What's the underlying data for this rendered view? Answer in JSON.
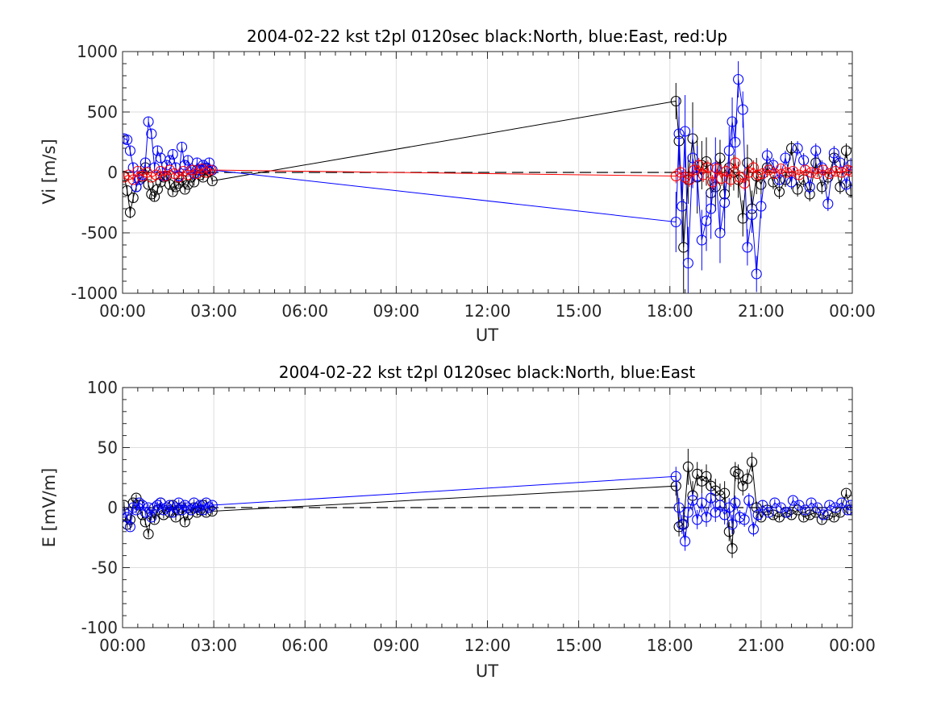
{
  "chart_data": [
    {
      "type": "scatter",
      "title": "2004-02-22 kst t2pl 0120sec black:North, blue:East, red:Up",
      "xlabel": "UT",
      "ylabel": "Vi [m/s]",
      "xlim": [
        0,
        24
      ],
      "ylim": [
        -1000,
        1000
      ],
      "x_ticks": [
        "00:00",
        "03:00",
        "06:00",
        "09:00",
        "12:00",
        "15:00",
        "18:00",
        "21:00",
        "00:00"
      ],
      "y_ticks": [
        "1000",
        "500",
        "0",
        "-500",
        "-1000"
      ],
      "grid": true,
      "reference_line": {
        "y": 0,
        "style": "dashed",
        "color": "#000000"
      },
      "series": [
        {
          "name": "North",
          "color": "#000000",
          "x": [
            0.05,
            0.15,
            0.25,
            0.35,
            0.45,
            0.55,
            0.65,
            0.75,
            0.85,
            0.95,
            1.05,
            1.15,
            1.25,
            1.35,
            1.45,
            1.55,
            1.65,
            1.75,
            1.85,
            1.95,
            2.05,
            2.15,
            2.25,
            2.35,
            2.45,
            2.55,
            2.65,
            2.75,
            2.85,
            2.95,
            18.2,
            18.3,
            18.45,
            18.6,
            18.75,
            18.9,
            19.05,
            19.2,
            19.35,
            19.5,
            19.65,
            19.8,
            19.95,
            20.1,
            20.25,
            20.4,
            20.55,
            20.7,
            20.85,
            21.0,
            21.2,
            21.4,
            21.6,
            21.8,
            22.0,
            22.2,
            22.4,
            22.6,
            22.8,
            23.0,
            23.2,
            23.4,
            23.6,
            23.8,
            23.95
          ],
          "y": [
            -30,
            -150,
            -330,
            -210,
            -120,
            -60,
            -40,
            40,
            -100,
            -180,
            -200,
            -140,
            -80,
            -40,
            -30,
            -100,
            -160,
            -120,
            -90,
            -60,
            -140,
            -100,
            -40,
            -80,
            20,
            -20,
            -40,
            30,
            10,
            -70,
            590,
            260,
            -620,
            -60,
            280,
            -40,
            60,
            90,
            -170,
            -120,
            120,
            -180,
            40,
            0,
            -60,
            -380,
            80,
            -300,
            -30,
            -100,
            40,
            -80,
            -160,
            -60,
            200,
            -140,
            -60,
            -180,
            80,
            -120,
            -40,
            120,
            -120,
            180,
            -150
          ],
          "error_y": [
            30,
            40,
            50,
            40,
            30,
            30,
            30,
            30,
            30,
            40,
            40,
            30,
            30,
            30,
            30,
            30,
            30,
            30,
            30,
            30,
            30,
            30,
            30,
            30,
            30,
            30,
            30,
            30,
            30,
            30,
            150,
            200,
            400,
            200,
            300,
            300,
            200,
            200,
            250,
            200,
            150,
            200,
            200,
            150,
            150,
            150,
            150,
            150,
            150,
            80,
            80,
            60,
            60,
            60,
            60,
            60,
            60,
            60,
            60,
            60,
            60,
            60,
            60,
            60,
            60
          ]
        },
        {
          "name": "East",
          "color": "#0000ff",
          "x": [
            0.05,
            0.15,
            0.25,
            0.35,
            0.45,
            0.55,
            0.65,
            0.75,
            0.85,
            0.95,
            1.05,
            1.15,
            1.25,
            1.35,
            1.45,
            1.55,
            1.65,
            1.75,
            1.85,
            1.95,
            2.05,
            2.15,
            2.25,
            2.35,
            2.45,
            2.55,
            2.65,
            2.75,
            2.85,
            2.95,
            18.2,
            18.3,
            18.4,
            18.5,
            18.6,
            18.75,
            18.9,
            19.05,
            19.2,
            19.35,
            19.5,
            19.65,
            19.8,
            19.95,
            20.05,
            20.15,
            20.25,
            20.4,
            20.55,
            20.7,
            20.85,
            21.0,
            21.2,
            21.4,
            21.6,
            21.8,
            22.0,
            22.2,
            22.4,
            22.6,
            22.8,
            23.0,
            23.2,
            23.4,
            23.6,
            23.8,
            23.95
          ],
          "y": [
            280,
            270,
            180,
            40,
            -120,
            -60,
            -20,
            80,
            420,
            320,
            40,
            180,
            120,
            -30,
            60,
            100,
            150,
            40,
            -30,
            210,
            60,
            100,
            20,
            -10,
            80,
            20,
            60,
            40,
            80,
            20,
            -410,
            320,
            -280,
            340,
            -750,
            120,
            -30,
            -560,
            -400,
            -300,
            40,
            -500,
            -250,
            180,
            420,
            250,
            770,
            520,
            -620,
            -350,
            -840,
            -280,
            140,
            60,
            -60,
            120,
            -80,
            200,
            100,
            -120,
            180,
            40,
            -260,
            160,
            80,
            -100,
            60
          ],
          "error_y": [
            40,
            40,
            40,
            40,
            40,
            40,
            40,
            40,
            40,
            40,
            40,
            40,
            40,
            40,
            40,
            40,
            40,
            40,
            40,
            40,
            40,
            40,
            40,
            40,
            40,
            40,
            40,
            40,
            40,
            40,
            250,
            300,
            300,
            300,
            300,
            250,
            250,
            250,
            250,
            250,
            250,
            250,
            250,
            200,
            200,
            200,
            150,
            150,
            150,
            150,
            150,
            100,
            60,
            60,
            60,
            60,
            60,
            60,
            60,
            60,
            60,
            60,
            60,
            60,
            60,
            60,
            60
          ]
        },
        {
          "name": "Up",
          "color": "#ff0000",
          "x": [
            0.05,
            0.2,
            0.35,
            0.5,
            0.65,
            0.8,
            0.95,
            1.1,
            1.25,
            1.4,
            1.55,
            1.7,
            1.85,
            2.0,
            2.15,
            2.3,
            2.45,
            2.6,
            2.75,
            2.9,
            18.2,
            18.35,
            18.5,
            18.65,
            18.8,
            18.95,
            19.1,
            19.25,
            19.4,
            19.55,
            19.7,
            19.85,
            20.0,
            20.15,
            20.3,
            20.45,
            20.6,
            20.75,
            20.9,
            21.05,
            21.25,
            21.45,
            21.65,
            21.85,
            22.05,
            22.25,
            22.45,
            22.65,
            22.85,
            23.05,
            23.25,
            23.45,
            23.65,
            23.85,
            23.95
          ],
          "y": [
            -40,
            -20,
            -60,
            10,
            -30,
            0,
            -40,
            -20,
            10,
            -30,
            20,
            -10,
            -40,
            10,
            -20,
            20,
            -10,
            30,
            0,
            20,
            -30,
            0,
            -40,
            -60,
            20,
            60,
            -20,
            40,
            -80,
            30,
            -50,
            10,
            -60,
            80,
            -40,
            -90,
            0,
            40,
            -20,
            -10,
            20,
            -10,
            30,
            0,
            10,
            -20,
            20,
            0,
            -10,
            20,
            -10,
            10,
            0,
            20,
            10
          ],
          "error_y": [
            20,
            20,
            20,
            20,
            20,
            20,
            20,
            20,
            20,
            20,
            20,
            20,
            20,
            20,
            20,
            20,
            20,
            20,
            20,
            20,
            60,
            60,
            60,
            60,
            60,
            60,
            60,
            60,
            60,
            60,
            60,
            60,
            60,
            60,
            60,
            60,
            60,
            60,
            60,
            30,
            30,
            30,
            30,
            30,
            30,
            30,
            30,
            30,
            30,
            30,
            30,
            30,
            30,
            30,
            30
          ]
        }
      ]
    },
    {
      "type": "scatter",
      "title": "2004-02-22 kst t2pl 0120sec black:North, blue:East",
      "xlabel": "UT",
      "ylabel": "E [mV/m]",
      "xlim": [
        0,
        24
      ],
      "ylim": [
        -100,
        100
      ],
      "x_ticks": [
        "00:00",
        "03:00",
        "06:00",
        "09:00",
        "12:00",
        "15:00",
        "18:00",
        "21:00",
        "00:00"
      ],
      "y_ticks": [
        "100",
        "50",
        "0",
        "-50",
        "-100"
      ],
      "grid": true,
      "reference_line": {
        "y": 0,
        "style": "dashed",
        "color": "#000000"
      },
      "series": [
        {
          "name": "North",
          "color": "#000000",
          "x": [
            0.05,
            0.15,
            0.25,
            0.35,
            0.45,
            0.55,
            0.65,
            0.75,
            0.85,
            0.95,
            1.05,
            1.15,
            1.25,
            1.35,
            1.45,
            1.55,
            1.65,
            1.75,
            1.85,
            1.95,
            2.05,
            2.15,
            2.25,
            2.35,
            2.45,
            2.55,
            2.65,
            2.75,
            2.85,
            2.95,
            18.2,
            18.3,
            18.45,
            18.6,
            18.75,
            18.9,
            19.05,
            19.2,
            19.35,
            19.5,
            19.65,
            19.8,
            19.95,
            20.05,
            20.15,
            20.25,
            20.4,
            20.55,
            20.7,
            20.85,
            21.0,
            21.2,
            21.4,
            21.6,
            21.8,
            22.0,
            22.2,
            22.4,
            22.6,
            22.8,
            23.0,
            23.2,
            23.4,
            23.6,
            23.8,
            23.95
          ],
          "y": [
            2,
            -14,
            -10,
            4,
            8,
            2,
            -6,
            -12,
            -22,
            -4,
            -10,
            -2,
            4,
            -6,
            0,
            -4,
            2,
            -8,
            -2,
            0,
            -12,
            -6,
            -2,
            0,
            -4,
            -2,
            2,
            -4,
            0,
            -3,
            18,
            -16,
            -14,
            34,
            10,
            28,
            22,
            26,
            18,
            14,
            10,
            12,
            -20,
            -34,
            30,
            28,
            18,
            24,
            38,
            0,
            -8,
            -2,
            -6,
            -8,
            -4,
            -6,
            -2,
            -8,
            -6,
            -4,
            -10,
            -6,
            -8,
            -4,
            12,
            -2
          ],
          "error_y": [
            3,
            3,
            3,
            3,
            3,
            3,
            3,
            3,
            3,
            3,
            3,
            3,
            3,
            3,
            3,
            3,
            3,
            3,
            3,
            3,
            3,
            3,
            3,
            3,
            3,
            3,
            3,
            3,
            3,
            3,
            8,
            8,
            10,
            15,
            12,
            10,
            10,
            10,
            10,
            10,
            10,
            10,
            8,
            8,
            8,
            8,
            8,
            8,
            8,
            5,
            3,
            3,
            3,
            3,
            3,
            3,
            3,
            3,
            3,
            3,
            3,
            3,
            3,
            3,
            3,
            3
          ]
        },
        {
          "name": "East",
          "color": "#0000ff",
          "x": [
            0.05,
            0.15,
            0.25,
            0.35,
            0.45,
            0.55,
            0.65,
            0.75,
            0.85,
            0.95,
            1.05,
            1.15,
            1.25,
            1.35,
            1.45,
            1.55,
            1.65,
            1.75,
            1.85,
            1.95,
            2.05,
            2.15,
            2.25,
            2.35,
            2.45,
            2.55,
            2.65,
            2.75,
            2.85,
            2.95,
            18.2,
            18.3,
            18.4,
            18.5,
            18.6,
            18.75,
            18.9,
            19.05,
            19.2,
            19.35,
            19.5,
            19.65,
            19.8,
            19.95,
            20.05,
            20.15,
            20.3,
            20.45,
            20.6,
            20.75,
            20.9,
            21.05,
            21.25,
            21.45,
            21.65,
            21.85,
            22.05,
            22.25,
            22.45,
            22.65,
            22.85,
            23.05,
            23.25,
            23.45,
            23.65,
            23.85,
            23.95
          ],
          "y": [
            -4,
            -8,
            -16,
            0,
            -2,
            4,
            2,
            -4,
            0,
            -8,
            0,
            2,
            4,
            -2,
            0,
            2,
            -4,
            0,
            4,
            -2,
            2,
            0,
            -2,
            4,
            0,
            2,
            -2,
            4,
            0,
            2,
            26,
            0,
            -14,
            -28,
            -4,
            6,
            -10,
            4,
            -8,
            8,
            -4,
            2,
            -6,
            0,
            -14,
            4,
            -8,
            -10,
            6,
            -18,
            -6,
            2,
            -4,
            4,
            0,
            -4,
            6,
            2,
            -2,
            4,
            0,
            -6,
            2,
            0,
            4,
            -2,
            2
          ],
          "error_y": [
            3,
            3,
            3,
            3,
            3,
            3,
            3,
            3,
            3,
            3,
            3,
            3,
            3,
            3,
            3,
            3,
            3,
            3,
            3,
            3,
            3,
            3,
            3,
            3,
            3,
            3,
            3,
            3,
            3,
            3,
            8,
            8,
            8,
            8,
            8,
            8,
            8,
            8,
            8,
            8,
            8,
            8,
            8,
            8,
            8,
            6,
            6,
            6,
            6,
            6,
            5,
            4,
            3,
            3,
            3,
            3,
            3,
            3,
            3,
            3,
            3,
            3,
            3,
            3,
            3,
            3,
            3
          ]
        }
      ]
    }
  ]
}
